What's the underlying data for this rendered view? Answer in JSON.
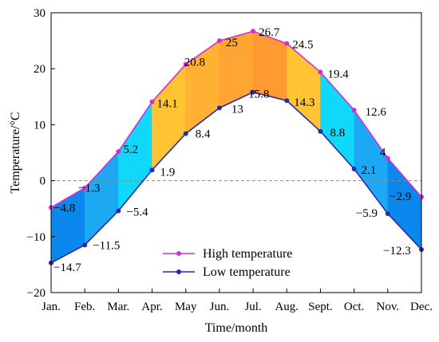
{
  "chart_data": {
    "type": "area",
    "categories": [
      "Jan.",
      "Feb.",
      "Mar.",
      "Apr.",
      "May",
      "Jun.",
      "Jul.",
      "Aug.",
      "Sept.",
      "Oct.",
      "Nov.",
      "Dec."
    ],
    "series": [
      {
        "name": "High temperature",
        "values": [
          -4.8,
          -1.3,
          5.2,
          14.1,
          20.8,
          25,
          26.7,
          24.5,
          19.4,
          12.6,
          4,
          -2.9
        ],
        "labels": [
          "−4.8",
          "−1.3",
          "5.2",
          "14.1",
          "20.8",
          "25",
          "26.7",
          "24.5",
          "19.4",
          "12.6",
          "4",
          "−2.9"
        ],
        "color": "#cc33cc"
      },
      {
        "name": "Low temperature",
        "values": [
          -14.7,
          -11.5,
          -5.4,
          1.9,
          8.4,
          13,
          15.8,
          14.3,
          8.8,
          2.1,
          -5.9,
          -12.3
        ],
        "labels": [
          "−14.7",
          "−11.5",
          "−5.4",
          "1.9",
          "8.4",
          "13",
          "15.8",
          "14.3",
          "8.8",
          "2.1",
          "−5.9",
          "−12.3"
        ],
        "color": "#2a2aa8"
      }
    ],
    "band_colors": [
      "#0a88ee",
      "#1da8f4",
      "#10d8fa",
      "#ffc333",
      "#ffb133",
      "#ffa533",
      "#ff9a33",
      "#ffc333",
      "#10d8fa",
      "#1da8f4",
      "#0a88ee"
    ],
    "xlabel": "Time/month",
    "ylabel": "Temperature/°C",
    "ylim": [
      -20,
      30
    ],
    "yticks": [
      -20,
      -10,
      0,
      10,
      20,
      30
    ],
    "ytick_labels": [
      "−20",
      "−10",
      "0",
      "10",
      "20",
      "30"
    ],
    "zero_line": "dashed",
    "grid": false,
    "legend_position": "bottom-center"
  }
}
